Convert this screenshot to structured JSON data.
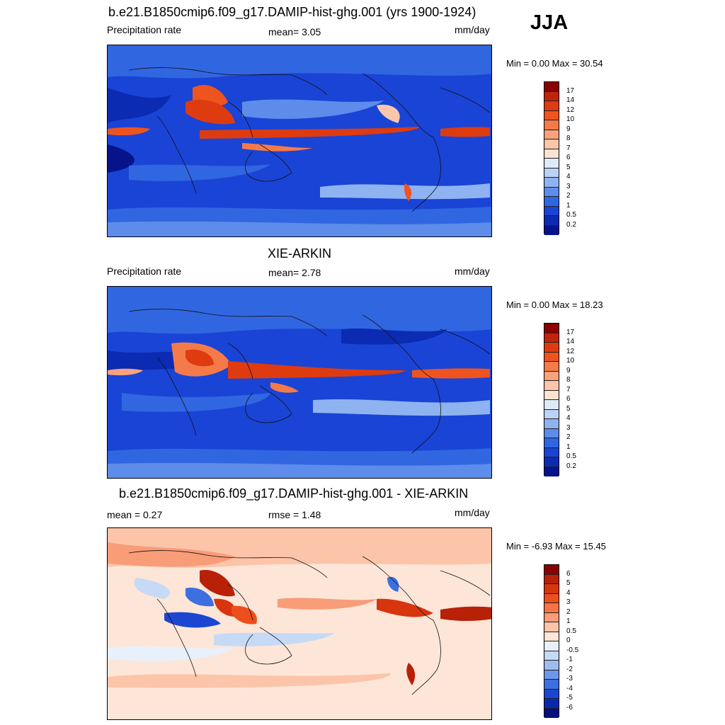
{
  "season": "JJA",
  "panels": [
    {
      "title": "b.e21.B1850cmip6.f09_g17.DAMIP-hist-ghg.001 (yrs 1900-1924)",
      "left_label": "Precipitation rate",
      "center_label": "mean=   3.05",
      "units": "mm/day",
      "minmax": "Min =   0.00 Max =  30.54",
      "colorbar": {
        "labels": [
          "17",
          "14",
          "12",
          "10",
          "9",
          "8",
          "7",
          "6",
          "5",
          "4",
          "3",
          "2",
          "1",
          "0.5",
          "0.2"
        ],
        "colors": [
          "#8b0000",
          "#c0250c",
          "#de3b10",
          "#f0541e",
          "#f57a4a",
          "#f9a27c",
          "#fcc6aa",
          "#fde4d2",
          "#dfeaf9",
          "#bcd3f6",
          "#8fb3f0",
          "#5d8cea",
          "#3166e1",
          "#1a44d6",
          "#0b2bb3",
          "#06138a"
        ]
      },
      "stats": {
        "mean": 3.05,
        "min": 0.0,
        "max": 30.54
      }
    },
    {
      "title": "XIE-ARKIN",
      "left_label": "Precipitation rate",
      "center_label": "mean=   2.78",
      "units": "mm/day",
      "minmax": "Min =   0.00 Max =  18.23",
      "colorbar": {
        "labels": [
          "17",
          "14",
          "12",
          "10",
          "9",
          "8",
          "7",
          "6",
          "5",
          "4",
          "3",
          "2",
          "1",
          "0.5",
          "0.2"
        ],
        "colors": [
          "#8b0000",
          "#c0250c",
          "#de3b10",
          "#f0541e",
          "#f57a4a",
          "#f9a27c",
          "#fcc6aa",
          "#fde4d2",
          "#dfeaf9",
          "#bcd3f6",
          "#8fb3f0",
          "#5d8cea",
          "#3166e1",
          "#1a44d6",
          "#0b2bb3",
          "#06138a"
        ]
      },
      "stats": {
        "mean": 2.78,
        "min": 0.0,
        "max": 18.23
      }
    },
    {
      "title": "b.e21.B1850cmip6.f09_g17.DAMIP-hist-ghg.001 - XIE-ARKIN",
      "left_label": "mean =   0.27",
      "center_label": "rmse =   1.48",
      "units": "mm/day",
      "minmax": "Min =  -6.93 Max =  15.45",
      "colorbar": {
        "labels": [
          "6",
          "5",
          "4",
          "3",
          "2",
          "1",
          "0.5",
          "0",
          "-0.5",
          "-1",
          "-2",
          "-3",
          "-4",
          "-5",
          "-6"
        ],
        "colors": [
          "#8b0000",
          "#b82008",
          "#d8350e",
          "#ec4f1c",
          "#f57347",
          "#f99c78",
          "#fcc4a9",
          "#fde6d8",
          "#e8f0fb",
          "#c6daf6",
          "#9dbdf1",
          "#6d97ea",
          "#3e6fe1",
          "#1c46d2",
          "#0a28ad",
          "#040e80"
        ]
      },
      "stats": {
        "mean": 0.27,
        "rmse": 1.48,
        "min": -6.93,
        "max": 15.45
      }
    }
  ]
}
